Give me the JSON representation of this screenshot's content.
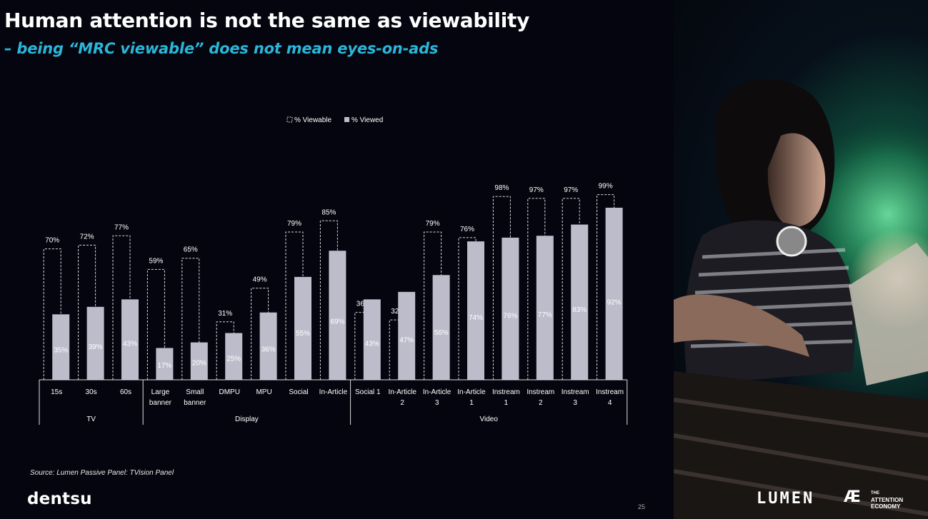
{
  "title": "Human attention is not the same as viewability",
  "subtitle": "– being “MRC viewable” does not mean eyes-on-ads",
  "source": "Source: Lumen Passive Panel: TVision Panel",
  "brand": "dentsu",
  "page_number": "25",
  "partner_logos": {
    "lumen": "LUMEN",
    "ae_mark": "Æ",
    "ae_text_top": "THE",
    "ae_text_mid": "ATTENTION",
    "ae_text_bot": "ECONOMY"
  },
  "colors": {
    "viewed": "#bdbccb",
    "viewable_outline": "#d8d8d8",
    "subtitle": "#2bb6d8",
    "background": "#05050f"
  },
  "chart_data": {
    "type": "bar",
    "legend": [
      "% Viewable",
      "% Viewed"
    ],
    "legend_position": "top-center",
    "ylim": [
      0,
      100
    ],
    "grid": false,
    "categories": [
      [
        "15s"
      ],
      [
        "30s"
      ],
      [
        "60s"
      ],
      [
        "Large",
        "banner"
      ],
      [
        "Small",
        "banner"
      ],
      [
        "DMPU"
      ],
      [
        "MPU"
      ],
      [
        "Social"
      ],
      [
        "In-Article"
      ],
      [
        "Social 1"
      ],
      [
        "In-Article",
        "2"
      ],
      [
        "In-Article",
        "3"
      ],
      [
        "In-Article",
        "1"
      ],
      [
        "Instream",
        "1"
      ],
      [
        "Instream",
        "2"
      ],
      [
        "Instream",
        "3"
      ],
      [
        "Instream",
        "4"
      ]
    ],
    "groups": [
      {
        "name": "TV",
        "count": 3
      },
      {
        "name": "Display",
        "count": 6
      },
      {
        "name": "Video",
        "count": 8
      }
    ],
    "series": [
      {
        "name": "% Viewable",
        "values": [
          70,
          72,
          77,
          59,
          65,
          31,
          49,
          79,
          85,
          36,
          32,
          79,
          76,
          98,
          97,
          97,
          99
        ],
        "labels": [
          "70%",
          "72%",
          "77%",
          "59%",
          "65%",
          "31%",
          "49%",
          "79%",
          "85%",
          "36%",
          "32%",
          "79%",
          "76%",
          "98%",
          "97%",
          "97%",
          "99%"
        ]
      },
      {
        "name": "% Viewed",
        "values": [
          35,
          39,
          43,
          17,
          20,
          25,
          36,
          55,
          69,
          43,
          47,
          56,
          74,
          76,
          77,
          83,
          92
        ],
        "labels": [
          "35%",
          "39%",
          "43%",
          "17%",
          "20%",
          "25%",
          "36%",
          "55%",
          "69%",
          "43%",
          "47%",
          "56%",
          "74%",
          "76%",
          "77%",
          "83%",
          "92%"
        ]
      }
    ]
  }
}
